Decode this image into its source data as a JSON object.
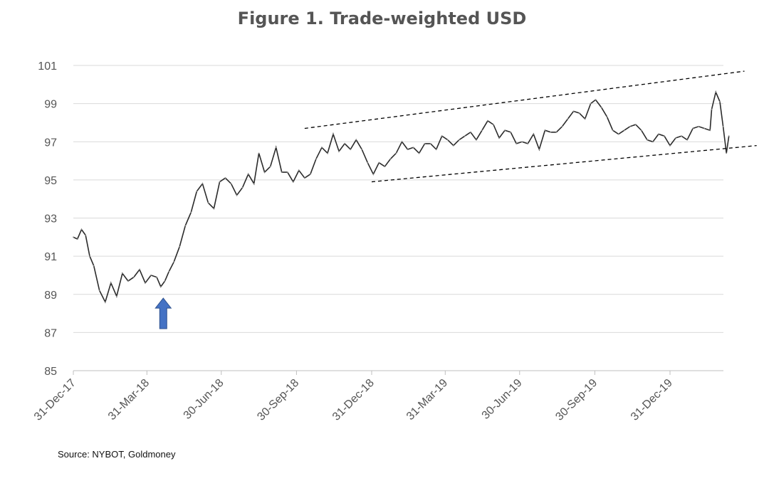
{
  "chart_data": {
    "type": "line",
    "title": "Figure 1. Trade-weighted USD",
    "xlabel": "",
    "ylabel": "",
    "ylim": [
      85,
      101
    ],
    "yticks": [
      85,
      87,
      89,
      91,
      93,
      95,
      97,
      99,
      101
    ],
    "ytick_labels": [
      "85",
      "87",
      "89",
      "91",
      "93",
      "95",
      "97",
      "99",
      "101"
    ],
    "xlim": [
      "2017-12-31",
      "2020-03-12"
    ],
    "xticks": [
      "2017-12-31",
      "2018-03-31",
      "2018-06-30",
      "2018-09-30",
      "2018-12-31",
      "2019-03-31",
      "2019-06-30",
      "2019-09-30",
      "2019-12-31"
    ],
    "xtick_labels": [
      "31-Dec-17",
      "31-Mar-18",
      "30-Jun-18",
      "30-Sep-18",
      "31-Dec-18",
      "31-Mar-19",
      "30-Jun-19",
      "30-Sep-19",
      "31-Dec-19"
    ],
    "grid": "horizontal",
    "legend": "none",
    "colors": {
      "series": "#2b2b2b",
      "grid": "#d9d9d9",
      "trendline": "#000000",
      "arrow": "#4472c4",
      "arrow_stroke": "#2f528f"
    },
    "series": [
      {
        "x": [
          "2017-12-31",
          "2018-01-05",
          "2018-01-10",
          "2018-01-15",
          "2018-01-20",
          "2018-01-25",
          "2018-02-01",
          "2018-02-08",
          "2018-02-15",
          "2018-02-22",
          "2018-03-01",
          "2018-03-08",
          "2018-03-15",
          "2018-03-22",
          "2018-03-29",
          "2018-04-05",
          "2018-04-12",
          "2018-04-17",
          "2018-04-22",
          "2018-04-27",
          "2018-05-03",
          "2018-05-10",
          "2018-05-17",
          "2018-05-24",
          "2018-05-31",
          "2018-06-07",
          "2018-06-14",
          "2018-06-21",
          "2018-06-28",
          "2018-07-05",
          "2018-07-12",
          "2018-07-19",
          "2018-07-26",
          "2018-08-02",
          "2018-08-09",
          "2018-08-15",
          "2018-08-22",
          "2018-08-29",
          "2018-09-05",
          "2018-09-12",
          "2018-09-19",
          "2018-09-26",
          "2018-10-03",
          "2018-10-10",
          "2018-10-17",
          "2018-10-24",
          "2018-10-31",
          "2018-11-07",
          "2018-11-14",
          "2018-11-21",
          "2018-11-28",
          "2018-12-05",
          "2018-12-12",
          "2018-12-19",
          "2018-12-26",
          "2019-01-02",
          "2019-01-09",
          "2019-01-16",
          "2019-01-23",
          "2019-01-30",
          "2019-02-06",
          "2019-02-13",
          "2019-02-20",
          "2019-02-27",
          "2019-03-06",
          "2019-03-13",
          "2019-03-20",
          "2019-03-27",
          "2019-04-03",
          "2019-04-10",
          "2019-04-17",
          "2019-04-24",
          "2019-05-01",
          "2019-05-08",
          "2019-05-15",
          "2019-05-22",
          "2019-05-29",
          "2019-06-05",
          "2019-06-12",
          "2019-06-19",
          "2019-06-26",
          "2019-07-03",
          "2019-07-10",
          "2019-07-17",
          "2019-07-24",
          "2019-07-31",
          "2019-08-07",
          "2019-08-14",
          "2019-08-21",
          "2019-08-28",
          "2019-09-04",
          "2019-09-11",
          "2019-09-18",
          "2019-09-25",
          "2019-10-01",
          "2019-10-08",
          "2019-10-15",
          "2019-10-22",
          "2019-10-29",
          "2019-11-05",
          "2019-11-12",
          "2019-11-19",
          "2019-11-26",
          "2019-12-03",
          "2019-12-10",
          "2019-12-17",
          "2019-12-24",
          "2019-12-31",
          "2020-01-07",
          "2020-01-14",
          "2020-01-21",
          "2020-01-28",
          "2020-02-04",
          "2020-02-11",
          "2020-02-18",
          "2020-02-20",
          "2020-02-25",
          "2020-03-01",
          "2020-03-05",
          "2020-03-09",
          "2020-03-12"
        ],
        "y": [
          92.0,
          91.9,
          92.4,
          92.1,
          91.0,
          90.5,
          89.2,
          88.6,
          89.6,
          88.9,
          90.1,
          89.7,
          89.9,
          90.3,
          89.6,
          90.0,
          89.9,
          89.4,
          89.7,
          90.2,
          90.7,
          91.5,
          92.6,
          93.3,
          94.4,
          94.8,
          93.8,
          93.5,
          94.9,
          95.1,
          94.8,
          94.2,
          94.6,
          95.3,
          94.8,
          96.4,
          95.4,
          95.7,
          96.7,
          95.4,
          95.4,
          94.9,
          95.5,
          95.1,
          95.3,
          96.1,
          96.7,
          96.4,
          97.4,
          96.5,
          96.9,
          96.6,
          97.1,
          96.6,
          95.9,
          95.3,
          95.9,
          95.7,
          96.1,
          96.4,
          97.0,
          96.6,
          96.7,
          96.4,
          96.9,
          96.9,
          96.6,
          97.3,
          97.1,
          96.8,
          97.1,
          97.3,
          97.5,
          97.1,
          97.6,
          98.1,
          97.9,
          97.2,
          97.6,
          97.5,
          96.9,
          97.0,
          96.9,
          97.4,
          96.6,
          97.6,
          97.5,
          97.5,
          97.8,
          98.2,
          98.6,
          98.5,
          98.2,
          99.0,
          99.2,
          98.8,
          98.3,
          97.6,
          97.4,
          97.6,
          97.8,
          97.9,
          97.6,
          97.1,
          97.0,
          97.4,
          97.3,
          96.8,
          97.2,
          97.3,
          97.1,
          97.7,
          97.8,
          97.7,
          97.6,
          98.7,
          99.6,
          99.1,
          97.8,
          96.4,
          97.3
        ]
      }
    ],
    "trendlines": [
      {
        "x": [
          "2018-10-10",
          "2020-03-31"
        ],
        "y": [
          97.7,
          100.7
        ]
      },
      {
        "x": [
          "2018-12-31",
          "2020-04-15"
        ],
        "y": [
          94.9,
          96.8
        ]
      }
    ],
    "annotations": [
      {
        "type": "arrow",
        "direction": "up",
        "x": "2018-04-20",
        "y_tip": 88.8,
        "y_base": 87.2
      }
    ],
    "source": "Source: NYBOT, Goldmoney"
  }
}
